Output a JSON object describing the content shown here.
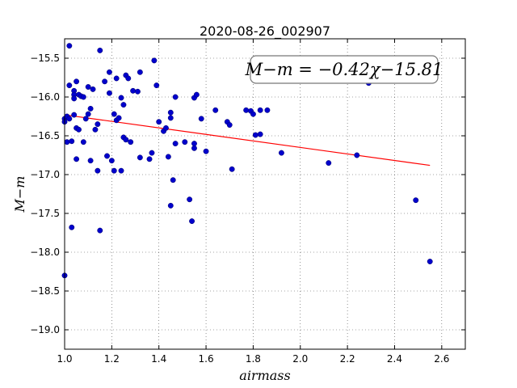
{
  "chart_data": {
    "type": "scatter",
    "title": "2020-08-26_002907",
    "xlabel": "airmass",
    "ylabel": "M−m",
    "xlim": [
      1.0,
      2.7
    ],
    "ylim": [
      -19.25,
      -15.25
    ],
    "y_inverted": true,
    "grid": true,
    "xticks": [
      1.0,
      1.2,
      1.4,
      1.6,
      1.8,
      2.0,
      2.2,
      2.4,
      2.6
    ],
    "xtick_labels": [
      "1.0",
      "1.2",
      "1.4",
      "1.6",
      "1.8",
      "2.0",
      "2.2",
      "2.4",
      "2.6"
    ],
    "yticks": [
      -15.5,
      -16.0,
      -16.5,
      -17.0,
      -17.5,
      -18.0,
      -18.5,
      -19.0
    ],
    "ytick_labels": [
      "−15.5",
      "−16.0",
      "−16.5",
      "−17.0",
      "−17.5",
      "−18.0",
      "−18.5",
      "−19.0"
    ],
    "annotation": "M−m = −0.42χ−15.81",
    "annotation_placement": "top-right",
    "fit_line": {
      "slope": -0.42,
      "intercept": -15.81,
      "x_range": [
        1.0,
        2.55
      ],
      "color": "#ff0000"
    },
    "marker_color": "#0000cc",
    "points": [
      [
        1.0,
        -16.28
      ],
      [
        1.0,
        -16.32
      ],
      [
        1.0,
        -18.3
      ],
      [
        1.01,
        -16.25
      ],
      [
        1.01,
        -16.58
      ],
      [
        1.02,
        -15.85
      ],
      [
        1.02,
        -15.34
      ],
      [
        1.02,
        -16.28
      ],
      [
        1.03,
        -16.57
      ],
      [
        1.03,
        -17.68
      ],
      [
        1.04,
        -15.92
      ],
      [
        1.04,
        -15.97
      ],
      [
        1.04,
        -16.02
      ],
      [
        1.04,
        -16.23
      ],
      [
        1.05,
        -15.8
      ],
      [
        1.05,
        -16.4
      ],
      [
        1.05,
        -16.8
      ],
      [
        1.06,
        -15.97
      ],
      [
        1.06,
        -16.42
      ],
      [
        1.07,
        -15.99
      ],
      [
        1.08,
        -16.0
      ],
      [
        1.08,
        -16.58
      ],
      [
        1.09,
        -16.28
      ],
      [
        1.1,
        -15.87
      ],
      [
        1.1,
        -16.22
      ],
      [
        1.11,
        -16.15
      ],
      [
        1.11,
        -16.82
      ],
      [
        1.12,
        -15.9
      ],
      [
        1.13,
        -16.42
      ],
      [
        1.14,
        -16.35
      ],
      [
        1.14,
        -16.95
      ],
      [
        1.15,
        -15.4
      ],
      [
        1.15,
        -17.72
      ],
      [
        1.17,
        -15.8
      ],
      [
        1.18,
        -16.76
      ],
      [
        1.19,
        -15.68
      ],
      [
        1.19,
        -15.95
      ],
      [
        1.2,
        -16.82
      ],
      [
        1.21,
        -16.22
      ],
      [
        1.21,
        -16.95
      ],
      [
        1.22,
        -15.76
      ],
      [
        1.22,
        -16.3
      ],
      [
        1.23,
        -16.27
      ],
      [
        1.24,
        -16.01
      ],
      [
        1.24,
        -16.95
      ],
      [
        1.25,
        -16.1
      ],
      [
        1.25,
        -16.52
      ],
      [
        1.26,
        -15.72
      ],
      [
        1.26,
        -16.55
      ],
      [
        1.27,
        -15.76
      ],
      [
        1.28,
        -16.58
      ],
      [
        1.29,
        -15.92
      ],
      [
        1.31,
        -15.93
      ],
      [
        1.32,
        -15.68
      ],
      [
        1.32,
        -16.78
      ],
      [
        1.36,
        -16.8
      ],
      [
        1.37,
        -16.72
      ],
      [
        1.38,
        -15.53
      ],
      [
        1.39,
        -15.85
      ],
      [
        1.4,
        -16.32
      ],
      [
        1.42,
        -16.44
      ],
      [
        1.43,
        -16.4
      ],
      [
        1.44,
        -16.77
      ],
      [
        1.45,
        -16.2
      ],
      [
        1.45,
        -16.27
      ],
      [
        1.45,
        -17.4
      ],
      [
        1.46,
        -17.07
      ],
      [
        1.47,
        -16.0
      ],
      [
        1.47,
        -16.6
      ],
      [
        1.51,
        -16.58
      ],
      [
        1.53,
        -17.32
      ],
      [
        1.54,
        -17.6
      ],
      [
        1.55,
        -16.6
      ],
      [
        1.55,
        -16.66
      ],
      [
        1.55,
        -16.01
      ],
      [
        1.56,
        -15.97
      ],
      [
        1.58,
        -16.28
      ],
      [
        1.6,
        -16.7
      ],
      [
        1.64,
        -16.17
      ],
      [
        1.69,
        -16.32
      ],
      [
        1.7,
        -16.36
      ],
      [
        1.71,
        -16.93
      ],
      [
        1.77,
        -16.17
      ],
      [
        1.79,
        -16.18
      ],
      [
        1.8,
        -16.22
      ],
      [
        1.81,
        -16.49
      ],
      [
        1.83,
        -16.17
      ],
      [
        1.83,
        -16.48
      ],
      [
        1.86,
        -16.17
      ],
      [
        1.92,
        -16.72
      ],
      [
        2.12,
        -16.85
      ],
      [
        2.24,
        -16.75
      ],
      [
        2.29,
        -15.82
      ],
      [
        2.49,
        -17.33
      ],
      [
        2.55,
        -18.12
      ]
    ]
  }
}
